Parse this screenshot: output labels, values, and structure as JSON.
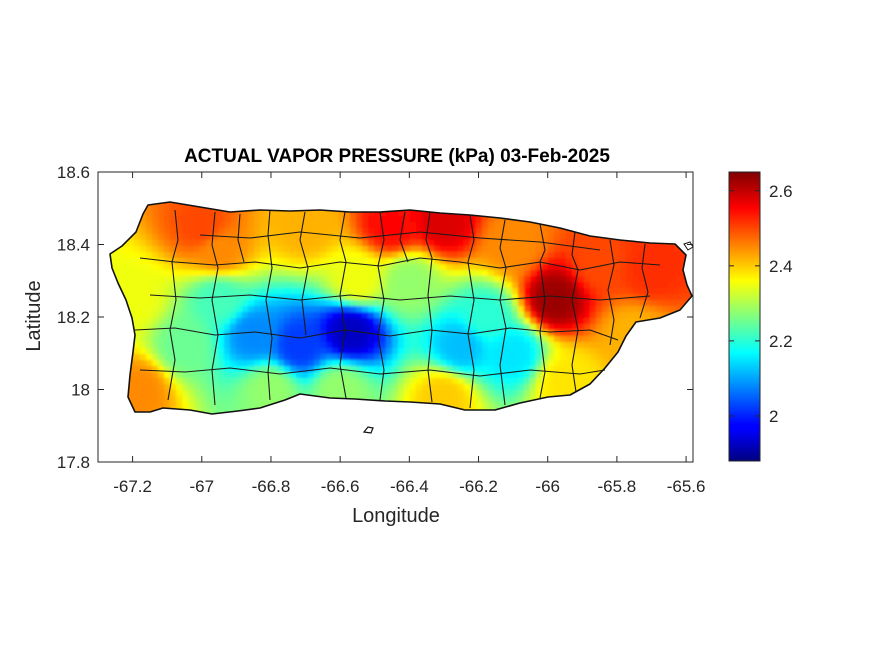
{
  "chart_data": {
    "type": "heatmap",
    "title": "ACTUAL VAPOR PRESSURE (kPa) 03-Feb-2025",
    "xlabel": "Longitude",
    "ylabel": "Latitude",
    "xlim": [
      -67.3,
      -65.58
    ],
    "ylim": [
      17.8,
      18.6
    ],
    "xticks": [
      -67.2,
      -67,
      -66.8,
      -66.6,
      -66.4,
      -66.2,
      -66,
      -65.8,
      -65.6
    ],
    "xtick_labels": [
      "-67.2",
      "-67",
      "-66.8",
      "-66.6",
      "-66.4",
      "-66.2",
      "-66",
      "-65.8",
      "-65.6"
    ],
    "yticks": [
      17.8,
      18,
      18.2,
      18.4,
      18.6
    ],
    "ytick_labels": [
      "17.8",
      "18",
      "18.2",
      "18.4",
      "18.6"
    ],
    "colorbar": {
      "colormap": "jet",
      "range": [
        1.88,
        2.65
      ],
      "ticks": [
        2,
        2.2,
        2.4,
        2.6
      ],
      "tick_labels": [
        "2",
        "2.2",
        "2.4",
        "2.6"
      ]
    },
    "field_anchors": [
      {
        "lon": -66.57,
        "lat": 18.16,
        "value": 1.93
      },
      {
        "lon": -66.85,
        "lat": 18.15,
        "value": 2.08
      },
      {
        "lon": -66.72,
        "lat": 18.12,
        "value": 2.02
      },
      {
        "lon": -66.95,
        "lat": 18.25,
        "value": 2.22
      },
      {
        "lon": -67.05,
        "lat": 18.12,
        "value": 2.25
      },
      {
        "lon": -66.25,
        "lat": 18.12,
        "value": 2.12
      },
      {
        "lon": -66.18,
        "lat": 18.2,
        "value": 2.2
      },
      {
        "lon": -66.1,
        "lat": 18.1,
        "value": 2.15
      },
      {
        "lon": -66.4,
        "lat": 18.3,
        "value": 2.28
      },
      {
        "lon": -66.45,
        "lat": 18.45,
        "value": 2.55
      },
      {
        "lon": -66.3,
        "lat": 18.46,
        "value": 2.58
      },
      {
        "lon": -66.7,
        "lat": 18.45,
        "value": 2.42
      },
      {
        "lon": -67.0,
        "lat": 18.45,
        "value": 2.5
      },
      {
        "lon": -66.95,
        "lat": 18.38,
        "value": 2.45
      },
      {
        "lon": -65.98,
        "lat": 18.25,
        "value": 2.63
      },
      {
        "lon": -65.85,
        "lat": 18.35,
        "value": 2.5
      },
      {
        "lon": -65.7,
        "lat": 18.33,
        "value": 2.52
      },
      {
        "lon": -65.75,
        "lat": 18.15,
        "value": 2.42
      },
      {
        "lon": -65.95,
        "lat": 18.02,
        "value": 2.38
      },
      {
        "lon": -67.2,
        "lat": 18.25,
        "value": 2.35
      },
      {
        "lon": -67.18,
        "lat": 18.0,
        "value": 2.45
      },
      {
        "lon": -66.3,
        "lat": 17.98,
        "value": 2.4
      },
      {
        "lon": -66.6,
        "lat": 18.0,
        "value": 2.28
      },
      {
        "lon": -66.8,
        "lat": 18.0,
        "value": 2.28
      },
      {
        "lon": -66.55,
        "lat": 18.3,
        "value": 2.35
      },
      {
        "lon": -66.1,
        "lat": 18.4,
        "value": 2.45
      }
    ]
  }
}
